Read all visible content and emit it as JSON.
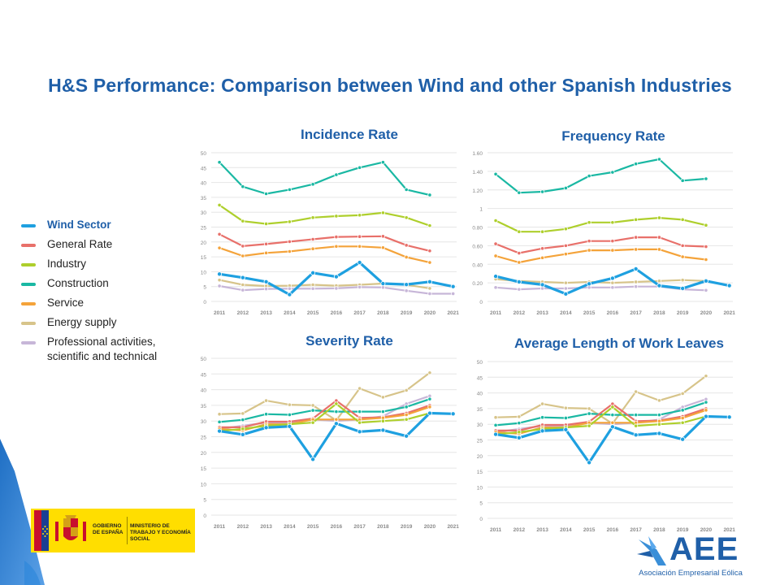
{
  "title": "H&S Performance: Comparison between Wind and other Spanish Industries",
  "legend": [
    {
      "name": "Wind Sector",
      "color": "#1ea0e0"
    },
    {
      "name": "General Rate",
      "color": "#e8706a"
    },
    {
      "name": "Industry",
      "color": "#aecf2c"
    },
    {
      "name": "Construction",
      "color": "#1ab8a3"
    },
    {
      "name": "Service",
      "color": "#f4a33a"
    },
    {
      "name": "Energy supply",
      "color": "#d7c48a"
    },
    {
      "name": "Professional activities, scientific and technical",
      "color": "#c7b6d8"
    }
  ],
  "chart_data": [
    {
      "type": "line",
      "title": "Incidence Rate",
      "x": [
        "2011",
        "2012",
        "2013",
        "2014",
        "2015",
        "2016",
        "2017",
        "2018",
        "2019",
        "2020",
        "2021"
      ],
      "ylim": [
        0,
        50
      ],
      "yticks": [
        "0",
        "5",
        "10",
        "15",
        "20",
        "25",
        "30",
        "35",
        "40",
        "45",
        "50"
      ],
      "grid": true,
      "series": [
        {
          "name": "Construction",
          "values": [
            46.8,
            38.6,
            36.2,
            37.6,
            39.4,
            42.6,
            45.0,
            46.8,
            37.6,
            35.8,
            null
          ]
        },
        {
          "name": "Industry",
          "values": [
            32.4,
            27.0,
            26.1,
            26.8,
            28.2,
            28.7,
            29.0,
            29.8,
            28.2,
            25.5,
            null
          ]
        },
        {
          "name": "General Rate",
          "values": [
            22.6,
            18.6,
            19.3,
            20.1,
            20.9,
            21.7,
            21.8,
            21.9,
            18.9,
            17.0,
            null
          ]
        },
        {
          "name": "Service",
          "values": [
            18.0,
            15.3,
            16.3,
            16.8,
            17.7,
            18.5,
            18.5,
            18.1,
            14.9,
            13.1,
            null
          ]
        },
        {
          "name": "Energy supply",
          "values": [
            7.2,
            5.6,
            5.2,
            5.3,
            5.6,
            5.3,
            5.6,
            6.0,
            5.6,
            4.4,
            null
          ]
        },
        {
          "name": "Professional activities, scientific and technical",
          "values": [
            5.2,
            3.8,
            4.2,
            4.3,
            4.3,
            4.4,
            4.8,
            4.7,
            3.6,
            2.6,
            2.6
          ]
        },
        {
          "name": "Wind Sector",
          "values": [
            9.2,
            8.0,
            6.6,
            2.3,
            9.6,
            8.3,
            13.1,
            6.0,
            5.7,
            6.6,
            5.0
          ]
        }
      ]
    },
    {
      "type": "line",
      "title": "Frequency Rate",
      "x": [
        "2011",
        "2012",
        "2013",
        "2014",
        "2015",
        "2016",
        "2017",
        "2018",
        "2019",
        "2020",
        "2021"
      ],
      "ylim": [
        0,
        1.6
      ],
      "yticks": [
        "0",
        "0.20",
        "0.40",
        "0.60",
        "0.80",
        "1",
        "1.20",
        "1.40",
        "1.60"
      ],
      "grid": true,
      "series": [
        {
          "name": "Construction",
          "values": [
            1.37,
            1.17,
            1.18,
            1.22,
            1.35,
            1.39,
            1.48,
            1.53,
            1.3,
            1.32,
            null
          ]
        },
        {
          "name": "Industry",
          "values": [
            0.87,
            0.75,
            0.75,
            0.78,
            0.85,
            0.85,
            0.88,
            0.9,
            0.88,
            0.82,
            null
          ]
        },
        {
          "name": "General Rate",
          "values": [
            0.62,
            0.52,
            0.57,
            0.6,
            0.65,
            0.65,
            0.69,
            0.69,
            0.6,
            0.59,
            null
          ]
        },
        {
          "name": "Service",
          "values": [
            0.49,
            0.42,
            0.47,
            0.51,
            0.55,
            0.55,
            0.56,
            0.56,
            0.48,
            0.45,
            null
          ]
        },
        {
          "name": "Energy supply",
          "values": [
            0.24,
            0.22,
            0.21,
            0.2,
            0.21,
            0.2,
            0.21,
            0.22,
            0.23,
            0.22,
            null
          ]
        },
        {
          "name": "Professional activities, scientific and technical",
          "values": [
            0.15,
            0.13,
            0.14,
            0.14,
            0.15,
            0.15,
            0.16,
            0.16,
            0.13,
            0.12,
            null
          ]
        },
        {
          "name": "Wind Sector",
          "values": [
            0.27,
            0.21,
            0.18,
            0.08,
            0.19,
            0.25,
            0.35,
            0.17,
            0.14,
            0.22,
            0.17
          ]
        }
      ]
    },
    {
      "type": "line",
      "title": "Severity Rate",
      "x": [
        "2011",
        "2012",
        "2013",
        "2014",
        "2015",
        "2016",
        "2017",
        "2018",
        "2019",
        "2020",
        "2021"
      ],
      "ylim": [
        0,
        50
      ],
      "yticks": [
        "0",
        "5",
        "10",
        "15",
        "20",
        "25",
        "30",
        "35",
        "40",
        "45",
        "50"
      ],
      "grid": true,
      "series": [
        {
          "name": "Energy supply",
          "values": [
            32.2,
            32.4,
            36.5,
            35.2,
            35.0,
            30.2,
            40.4,
            37.6,
            39.8,
            45.4,
            null
          ]
        },
        {
          "name": "Professional activities, scientific and technical",
          "values": [
            27.5,
            28.5,
            29.5,
            29.5,
            30.5,
            30.0,
            30.5,
            31.5,
            35.5,
            38.0,
            null
          ]
        },
        {
          "name": "Construction",
          "values": [
            29.7,
            30.4,
            32.2,
            32.0,
            33.4,
            33.0,
            33.0,
            33.0,
            34.5,
            37.0,
            null
          ]
        },
        {
          "name": "General Rate",
          "values": [
            28.0,
            28.0,
            29.8,
            29.8,
            30.8,
            36.5,
            31.0,
            31.2,
            32.5,
            35.0,
            null
          ]
        },
        {
          "name": "Service",
          "values": [
            27.5,
            27.0,
            29.0,
            29.0,
            30.5,
            30.5,
            30.5,
            31.0,
            32.0,
            34.5,
            null
          ]
        },
        {
          "name": "Industry",
          "values": [
            26.8,
            27.5,
            28.5,
            29.0,
            29.5,
            35.5,
            29.5,
            30.0,
            30.5,
            32.5,
            null
          ]
        },
        {
          "name": "Wind Sector",
          "values": [
            26.8,
            25.7,
            27.9,
            28.3,
            17.8,
            29.2,
            26.6,
            27.1,
            25.2,
            32.5,
            32.3
          ]
        }
      ]
    },
    {
      "type": "line",
      "title": "Average Length of Work Leaves",
      "x": [
        "2011",
        "2012",
        "2013",
        "2014",
        "2015",
        "2016",
        "2017",
        "2018",
        "2019",
        "2020",
        "2021"
      ],
      "ylim": [
        0,
        50
      ],
      "yticks": [
        "0",
        "5",
        "10",
        "15",
        "20",
        "25",
        "30",
        "35",
        "40",
        "45",
        "50"
      ],
      "grid": true,
      "series": [
        {
          "name": "Energy supply",
          "values": [
            32.2,
            32.4,
            36.5,
            35.2,
            35.0,
            30.2,
            40.4,
            37.6,
            39.8,
            45.4,
            null
          ]
        },
        {
          "name": "Professional activities, scientific and technical",
          "values": [
            27.5,
            28.5,
            29.5,
            29.5,
            30.5,
            30.0,
            30.5,
            31.5,
            35.5,
            38.0,
            null
          ]
        },
        {
          "name": "Construction",
          "values": [
            29.7,
            30.4,
            32.2,
            32.0,
            33.4,
            33.0,
            33.0,
            33.0,
            34.5,
            37.0,
            null
          ]
        },
        {
          "name": "General Rate",
          "values": [
            28.0,
            28.0,
            29.8,
            29.8,
            30.8,
            36.5,
            31.0,
            31.2,
            32.5,
            35.0,
            null
          ]
        },
        {
          "name": "Service",
          "values": [
            27.5,
            27.0,
            29.0,
            29.0,
            30.5,
            30.5,
            30.5,
            31.0,
            32.0,
            34.5,
            null
          ]
        },
        {
          "name": "Industry",
          "values": [
            26.8,
            27.5,
            28.5,
            29.0,
            29.5,
            35.5,
            29.5,
            30.0,
            30.5,
            32.5,
            null
          ]
        },
        {
          "name": "Wind Sector",
          "values": [
            26.8,
            25.7,
            27.9,
            28.3,
            17.8,
            29.2,
            26.6,
            27.1,
            25.2,
            32.5,
            32.3
          ]
        }
      ]
    }
  ],
  "logos": {
    "gov_1": "GOBIERNO DE ESPAÑA",
    "gov_2": "MINISTERIO DE TRABAJO Y ECONOMÍA SOCIAL",
    "aee": "AEE",
    "aee_sub": "Asociación Empresarial Eólica"
  }
}
